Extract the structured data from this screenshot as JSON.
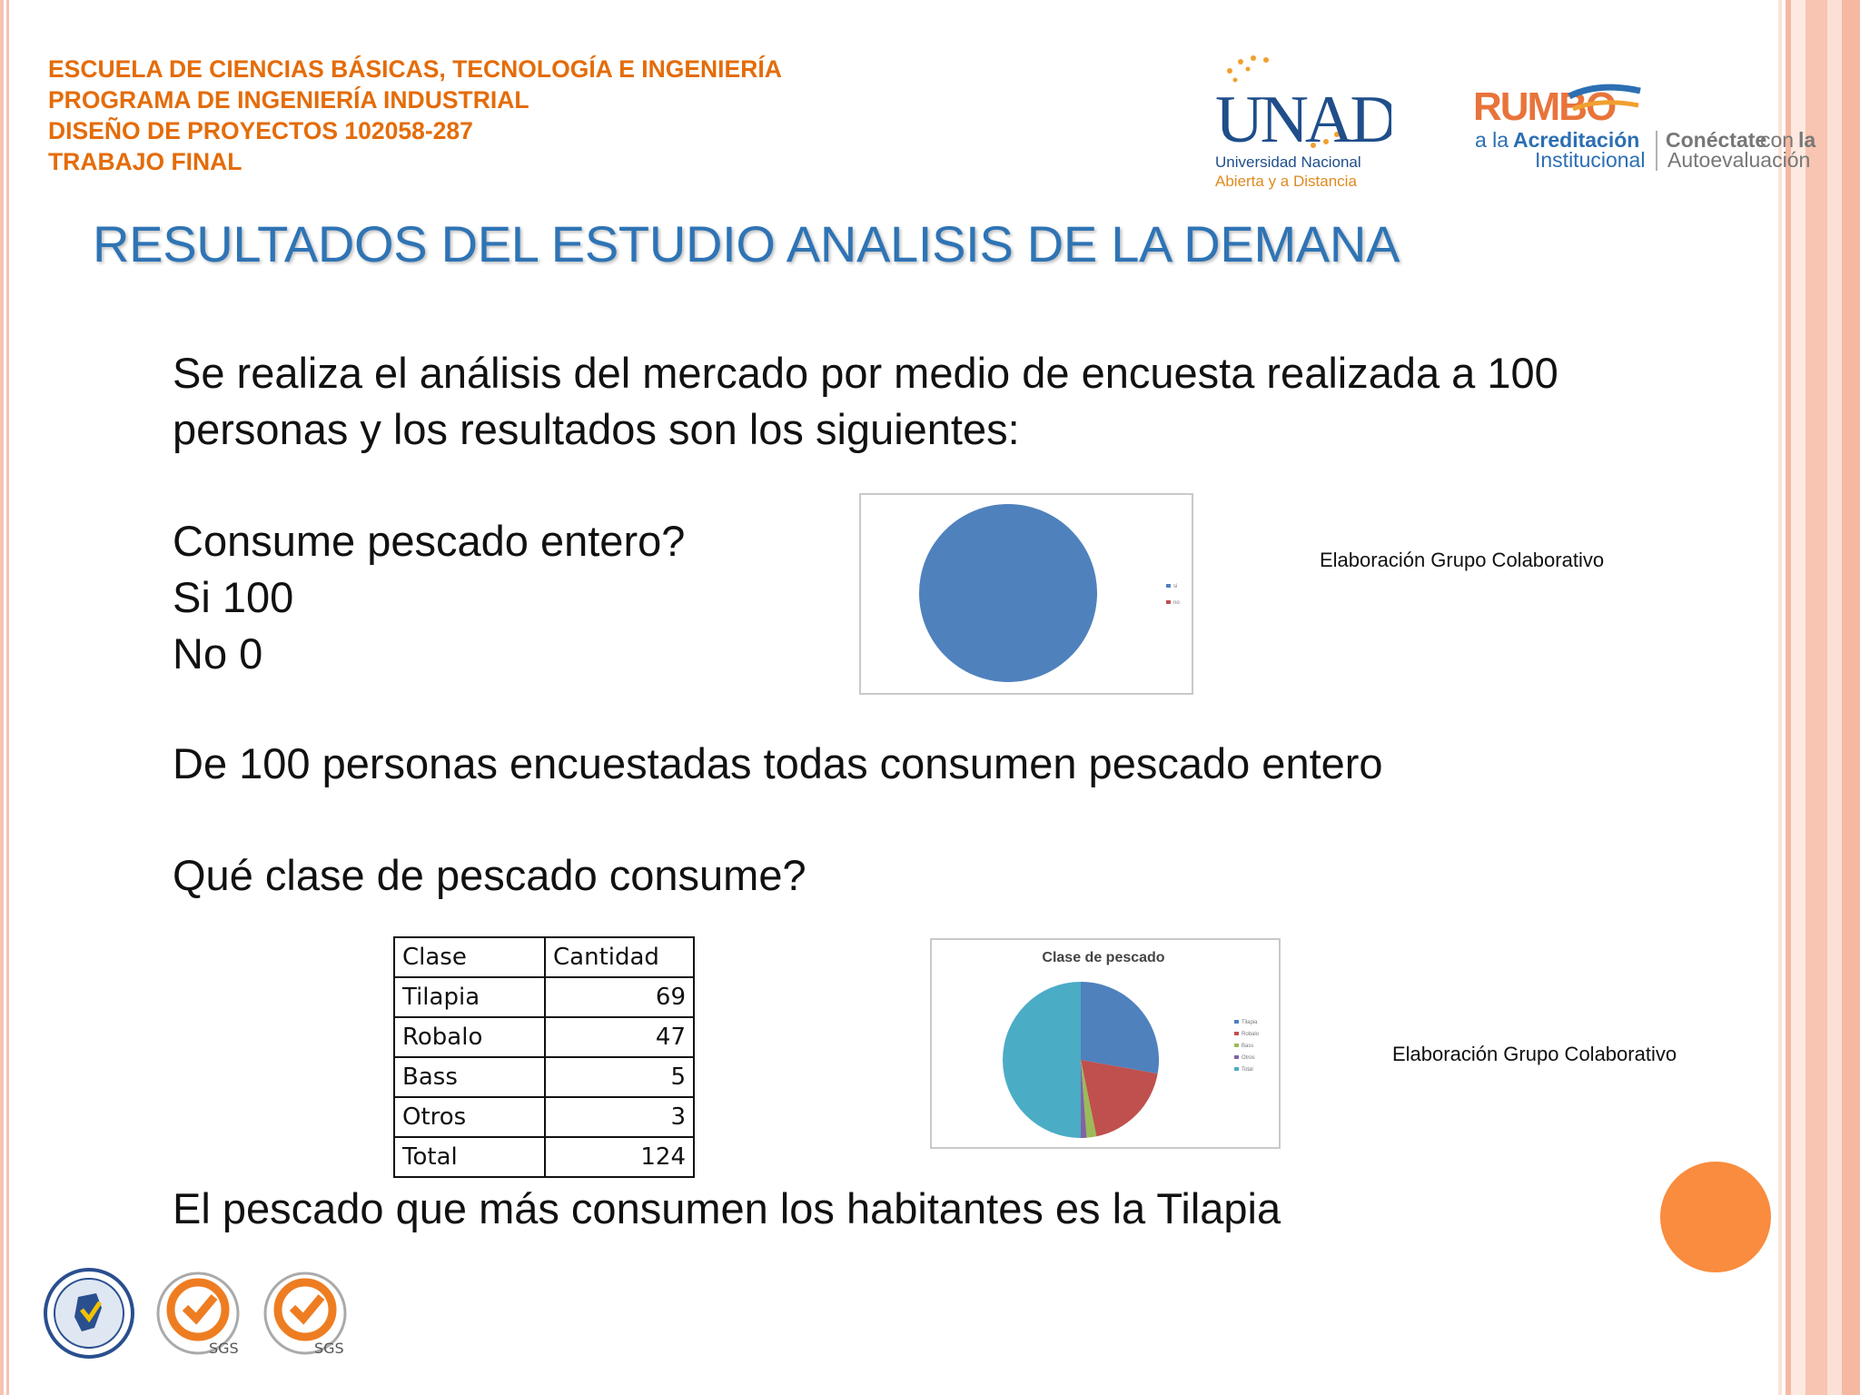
{
  "header": {
    "lines": [
      "ESCUELA DE CIENCIAS BÁSICAS, TECNOLOGÍA E INGENIERÍA",
      "PROGRAMA DE INGENIERÍA INDUSTRIAL",
      "DISEÑO DE PROYECTOS 102058-287",
      "TRABAJO FINAL"
    ]
  },
  "logos": {
    "unad": {
      "name": "UNAD",
      "line1": "Universidad Nacional",
      "line2": "Abierta y a Distancia"
    },
    "rumbo": {
      "name": "RUMBO",
      "prefix": "a la",
      "word1": "Acreditación",
      "word2": "Institucional",
      "word3a": "Conéctate",
      "word3b": "con",
      "word3c": "la",
      "word4": "Autoevaluación"
    }
  },
  "title": "RESULTADOS DEL ESTUDIO ANALISIS DE LA DEMANA",
  "intro": {
    "line1": "Se realiza el análisis del mercado por medio de encuesta realizada a 100",
    "line2": "personas y los resultados son los siguientes:"
  },
  "question1": {
    "text": "Consume pescado entero?",
    "answers": [
      "Si  100",
      "No   0"
    ]
  },
  "caption1": "Elaboración Grupo Colaborativo",
  "conclusion1": "De 100 personas encuestadas todas consumen pescado entero",
  "question2": "Qué clase de pescado consume?",
  "table": {
    "headers": [
      "Clase",
      "Cantidad"
    ],
    "rows": [
      [
        "Tilapia",
        "69"
      ],
      [
        "Robalo",
        "47"
      ],
      [
        "Bass",
        "5"
      ],
      [
        "Otros",
        "3"
      ],
      [
        "Total",
        "124"
      ]
    ]
  },
  "caption2": "Elaboración Grupo Colaborativo",
  "conclusion2": "El pescado que más consumen los habitantes es la Tilapia",
  "chart_data": [
    {
      "type": "pie",
      "categories": [
        "si",
        "no"
      ],
      "values": [
        100,
        0
      ],
      "colors": [
        "#4f81bd",
        "#c0504d"
      ],
      "legend": "right"
    },
    {
      "type": "pie",
      "title": "Clase de pescado",
      "categories": [
        "Tilapia",
        "Robalo",
        "Bass",
        "Otros",
        "Total"
      ],
      "values": [
        69,
        47,
        5,
        3,
        124
      ],
      "colors": [
        "#4f81bd",
        "#c0504d",
        "#9bbb59",
        "#8064a2",
        "#4bacc6"
      ],
      "legend": "right"
    }
  ],
  "colors": {
    "header_orange": "#e46c0a",
    "title_blue": "#2e74b5",
    "accent_orange": "#f98c3e"
  }
}
